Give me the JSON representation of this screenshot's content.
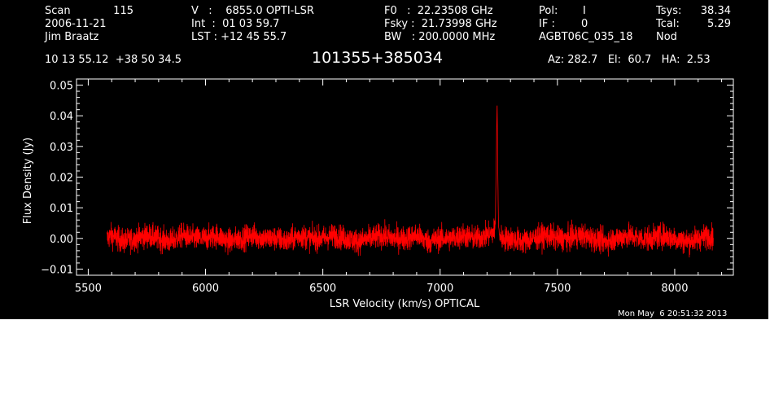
{
  "header": {
    "scan_label": "Scan",
    "scan_value": "115",
    "date": "2006-11-21",
    "observer": "Jim Braatz",
    "ra_dec": "10 13 55.12  +38 50 34.5",
    "v_line": "V   :    6855.0 OPTI-LSR",
    "int_line": "Int  :  01 03 59.7",
    "lst_line": "LST : +12 45 55.7",
    "f0_line": "F0   :  22.23508 GHz",
    "fsky_line": "Fsky :  21.73998 GHz",
    "bw_line": "BW   : 200.0000 MHz",
    "pol_label": "Pol:",
    "pol_value": "I",
    "if_label": "IF :",
    "if_value": "0",
    "project": "AGBT06C_035_18",
    "mode": "Nod",
    "tsys_label": "Tsys:",
    "tsys_value": "38.34",
    "tcal_label": "Tcal:",
    "tcal_value": "5.29",
    "az_el_ha": "Az: 282.7   El:  60.7   HA:  2.53",
    "source": "101355+385034"
  },
  "footer": {
    "timestamp": "Mon May  6 20:51:32 2013"
  },
  "colors": {
    "background": "#000000",
    "axes": "#ffffff",
    "trace": "#ff0000"
  },
  "chart_data": {
    "type": "line",
    "title": "101355+385034",
    "xlabel": "LSR Velocity (km/s) OPTICAL",
    "ylabel": "Flux Density (Jy)",
    "xlim": [
      5450,
      8250
    ],
    "ylim": [
      -0.012,
      0.052
    ],
    "x_ticks": [
      5500,
      6000,
      6500,
      7000,
      7500,
      8000
    ],
    "y_ticks": [
      -0.01,
      0.0,
      0.01,
      0.02,
      0.03,
      0.04,
      0.05
    ],
    "x_tick_labels": [
      "5500",
      "6000",
      "6500",
      "7000",
      "7500",
      "8000"
    ],
    "y_tick_labels": [
      "−0.01",
      "0.00",
      "0.01",
      "0.02",
      "0.03",
      "0.04",
      "0.05"
    ],
    "grid": false,
    "series": [
      {
        "color": "#ff0000",
        "x": [
          5580,
          5600,
          5650,
          5700,
          5750,
          5800,
          5850,
          5900,
          5950,
          6000,
          6050,
          6100,
          6150,
          6200,
          6250,
          6300,
          6350,
          6400,
          6450,
          6500,
          6550,
          6600,
          6650,
          6700,
          6750,
          6800,
          6850,
          6900,
          6950,
          7000,
          7050,
          7100,
          7150,
          7200,
          7225,
          7235,
          7240,
          7243,
          7246,
          7249,
          7255,
          7265,
          7300,
          7350,
          7400,
          7450,
          7500,
          7550,
          7600,
          7650,
          7700,
          7750,
          7800,
          7850,
          7900,
          7950,
          8000,
          8050,
          8100,
          8150,
          8165
        ],
        "y": [
          0.0,
          0.001,
          -0.001,
          0.0,
          0.001,
          0.0,
          -0.001,
          0.001,
          0.0,
          0.0,
          0.001,
          -0.001,
          0.0,
          0.001,
          0.0,
          0.0,
          -0.001,
          0.001,
          0.0,
          0.0,
          0.001,
          0.0,
          -0.001,
          0.0,
          0.001,
          0.0,
          0.0,
          0.001,
          -0.001,
          0.0,
          0.0,
          0.001,
          0.0,
          0.001,
          0.002,
          0.003,
          0.03,
          0.045,
          0.02,
          0.004,
          0.001,
          0.0,
          0.0,
          -0.001,
          0.0,
          0.001,
          0.0,
          0.0,
          0.001,
          0.0,
          -0.001,
          0.0,
          0.001,
          0.0,
          0.0,
          0.001,
          0.0,
          -0.001,
          0.0,
          0.001,
          0.0
        ],
        "noise_rms": 0.002
      }
    ]
  }
}
